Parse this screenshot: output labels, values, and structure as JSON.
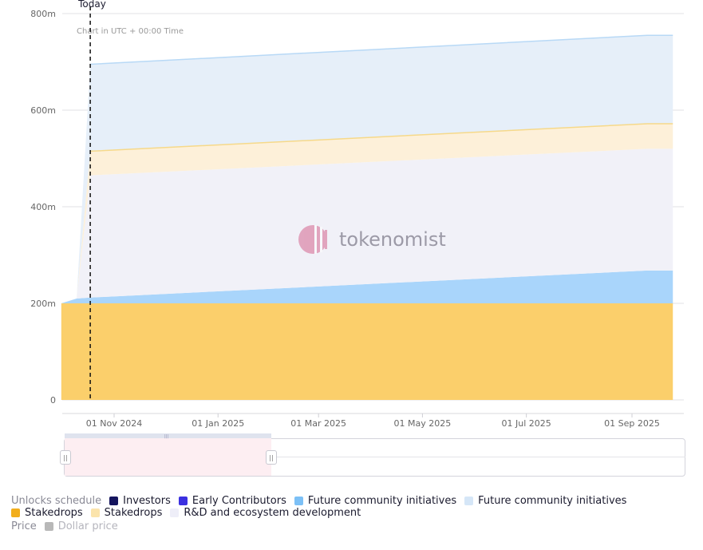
{
  "chart_data": {
    "type": "area",
    "stacked": true,
    "annotation_today": "Today",
    "note": "Chart in UTC + 00:00 Time",
    "watermark": "tokenomist",
    "y_ticks": [
      "0",
      "200m",
      "400m",
      "600m",
      "800m"
    ],
    "ylim": [
      0,
      800
    ],
    "x_ticks": [
      "01 Nov 2024",
      "01 Jan 2025",
      "01 Mar 2025",
      "01 May 2025",
      "01 Jul 2025",
      "01 Sep 2025"
    ],
    "x_dates": [
      "2024-10-01",
      "2024-10-10",
      "2024-10-18",
      "2025-09-10",
      "2025-09-25"
    ],
    "today_date": "2024-10-18",
    "series": [
      {
        "name": "Stakedrops",
        "color": "#fbcf6b",
        "values": [
          200,
          200,
          200,
          200,
          200
        ]
      },
      {
        "name": "Future community initiatives",
        "color": "#a9d5fb",
        "values": [
          0,
          10,
          12,
          68,
          68
        ]
      },
      {
        "name": "R&D and ecosystem development",
        "color": "#f1f1f8",
        "values": [
          0,
          0,
          253,
          252,
          252
        ]
      },
      {
        "name": "Stakedrops",
        "color": "#fdf0d9",
        "values": [
          0,
          0,
          50,
          52,
          52
        ]
      },
      {
        "name": "Future community initiatives",
        "color": "#e6eff9",
        "values": [
          0,
          0,
          180,
          183,
          183
        ]
      }
    ]
  },
  "legend": {
    "title": "Unlocks schedule",
    "items": [
      {
        "label": "Investors",
        "color": "#15155e"
      },
      {
        "label": "Early Contributors",
        "color": "#3b30e0"
      },
      {
        "label": "Future community initiatives",
        "color": "#7cc0f6"
      },
      {
        "label": "Future community initiatives",
        "color": "#d5e6f7"
      },
      {
        "label": "Stakedrops",
        "color": "#f2ae1c"
      },
      {
        "label": "Stakedrops",
        "color": "#fbe4ac"
      },
      {
        "label": "R&D and ecosystem development",
        "color": "#eeeef8"
      }
    ]
  },
  "price": {
    "title": "Price",
    "label": "Dollar price",
    "color": "#b8b8b8"
  },
  "navigator": {
    "handle_icon": "grip-lines-icon"
  }
}
